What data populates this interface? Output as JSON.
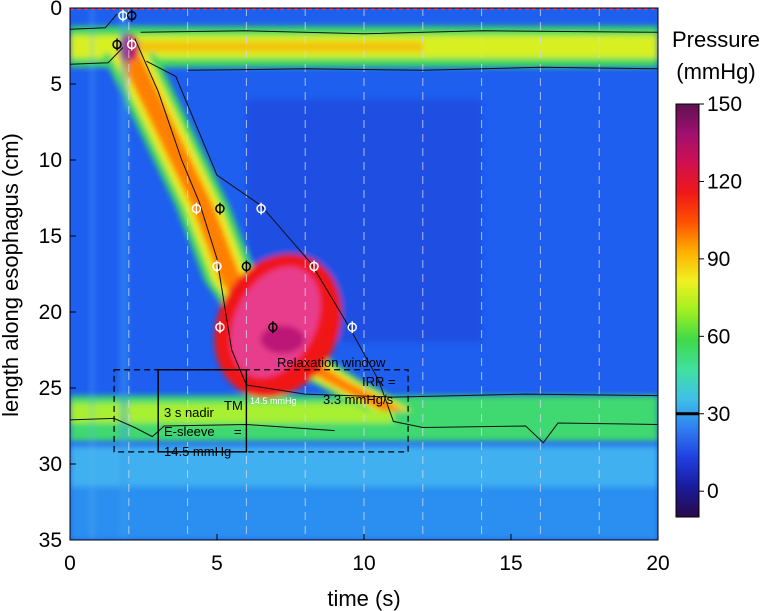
{
  "chart_data": {
    "type": "heatmap",
    "title": "",
    "xlabel": "time (s)",
    "ylabel": "length along esophagus (cm)",
    "xlim": [
      0,
      20
    ],
    "ylim": [
      35,
      0
    ],
    "x_ticks": [
      "0",
      "5",
      "10",
      "15",
      "20"
    ],
    "y_ticks": [
      "0",
      "5",
      "10",
      "15",
      "20",
      "25",
      "30",
      "35"
    ],
    "colorbar": {
      "title_line1": "Pressure",
      "title_line2": "(mmHg)",
      "range": [
        -10,
        150
      ],
      "ticks": [
        "150",
        "120",
        "90",
        "60",
        "30",
        "0"
      ],
      "tick_values": [
        150,
        120,
        90,
        60,
        30,
        0
      ],
      "isobar_marker": 30,
      "colors": [
        "#2a0a4a",
        "#1a1a9a",
        "#1f3fe0",
        "#2f7ff0",
        "#3fc0e8",
        "#40e0a0",
        "#3fd94a",
        "#a0f020",
        "#f0f020",
        "#ffb000",
        "#ff5000",
        "#f01818",
        "#d01050",
        "#a01070",
        "#601050"
      ]
    },
    "features": {
      "ues_band_cm": [
        1.5,
        3.5
      ],
      "les_band_cm": [
        25.5,
        28.5
      ],
      "swallow_time_s": 2.0,
      "contraction_path": [
        {
          "t": 2.0,
          "cm": 3.0
        },
        {
          "t": 3.0,
          "cm": 7.0
        },
        {
          "t": 4.5,
          "cm": 13.0
        },
        {
          "t": 5.5,
          "cm": 18.0
        },
        {
          "t": 7.0,
          "cm": 22.0
        },
        {
          "t": 9.0,
          "cm": 24.5
        },
        {
          "t": 11.0,
          "cm": 26.5
        }
      ],
      "peak_pressure_region": {
        "t_range": [
          5.8,
          9.2
        ],
        "cm_range": [
          17.0,
          24.5
        ]
      },
      "dashed_time_lines_s": [
        2,
        4,
        6,
        8,
        10,
        12,
        14,
        16,
        18
      ]
    },
    "annotations": {
      "relaxation_window_label": "Relaxation window",
      "irr_line1": "IRR =",
      "irr_line2": "3.3 mmHg/s",
      "irr_small": "14.5 mmHg",
      "nadir_line1": "3 s nadir",
      "nadir_line2": "E-sleeve",
      "nadir_tm": "TM",
      "nadir_eq": "=",
      "nadir_line3": "14.5 mmHg",
      "relaxation_window_s": [
        1.5,
        11.5
      ],
      "relaxation_window_cm": [
        23.8,
        29.2
      ],
      "nadir_box_s": [
        3.0,
        6.0
      ],
      "nadir_box_cm": [
        23.8,
        29.2
      ]
    },
    "markers": [
      {
        "t": 1.8,
        "cm": 0.5,
        "color": "white"
      },
      {
        "t": 2.1,
        "cm": 0.5,
        "color": "black"
      },
      {
        "t": 1.6,
        "cm": 2.4,
        "color": "black"
      },
      {
        "t": 2.1,
        "cm": 2.4,
        "color": "white"
      },
      {
        "t": 4.3,
        "cm": 13.2,
        "color": "white"
      },
      {
        "t": 5.1,
        "cm": 13.2,
        "color": "black"
      },
      {
        "t": 6.5,
        "cm": 13.2,
        "color": "white"
      },
      {
        "t": 5.0,
        "cm": 17.0,
        "color": "white"
      },
      {
        "t": 6.0,
        "cm": 17.0,
        "color": "black"
      },
      {
        "t": 8.3,
        "cm": 17.0,
        "color": "white"
      },
      {
        "t": 5.1,
        "cm": 21.0,
        "color": "white"
      },
      {
        "t": 6.9,
        "cm": 21.0,
        "color": "black"
      },
      {
        "t": 9.6,
        "cm": 21.0,
        "color": "white"
      }
    ]
  }
}
